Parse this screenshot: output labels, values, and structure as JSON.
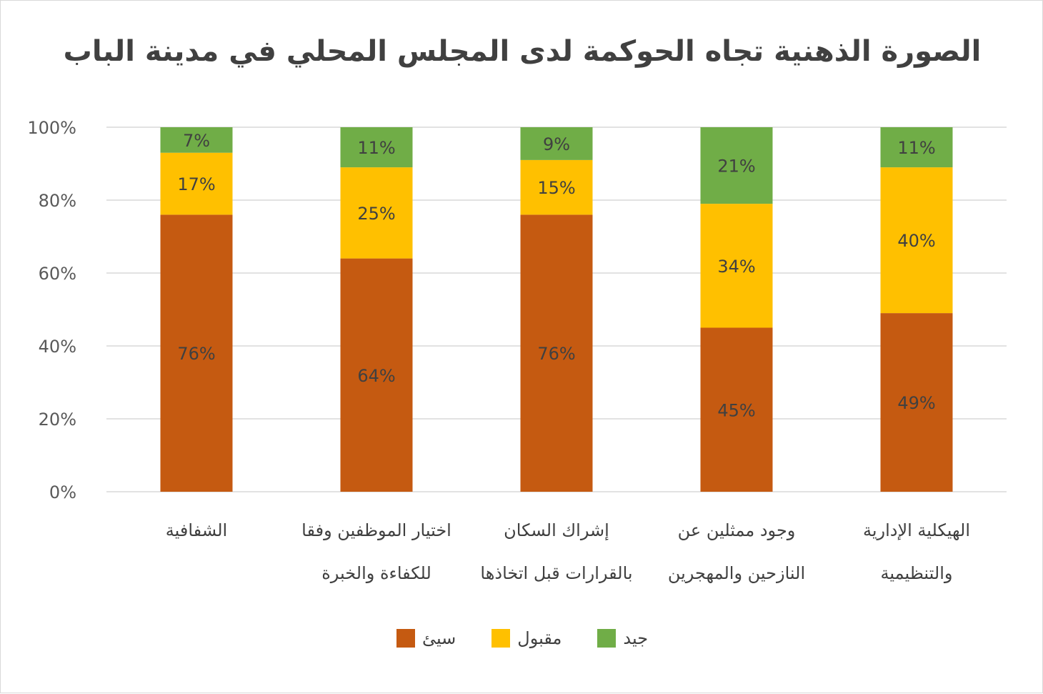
{
  "chart_data": {
    "type": "bar",
    "stacked": true,
    "title": "الصورة الذهنية تجاه الحوكمة لدى المجلس المحلي في مدينة الباب",
    "categories": [
      [
        "الشفافية"
      ],
      [
        "اختيار الموظفين وفقا",
        "للكفاءة والخبرة"
      ],
      [
        "إشراك السكان",
        "بالقرارات قبل اتخاذها"
      ],
      [
        "وجود ممثلين عن",
        "النازحين والمهجرين"
      ],
      [
        "الهيكلية الإدارية",
        "والتنظيمية"
      ]
    ],
    "series": [
      {
        "name": "سيئ",
        "color": "#C55A11",
        "values": [
          76,
          64,
          76,
          45,
          49
        ]
      },
      {
        "name": "مقبول",
        "color": "#FFC000",
        "values": [
          17,
          25,
          15,
          34,
          40
        ]
      },
      {
        "name": "جيد",
        "color": "#70AD47",
        "values": [
          7,
          11,
          9,
          21,
          11
        ]
      }
    ],
    "ylim": [
      0,
      100
    ],
    "yticks": [
      "0%",
      "20%",
      "40%",
      "60%",
      "80%",
      "100%"
    ],
    "legend_position": "bottom",
    "grid": true
  }
}
